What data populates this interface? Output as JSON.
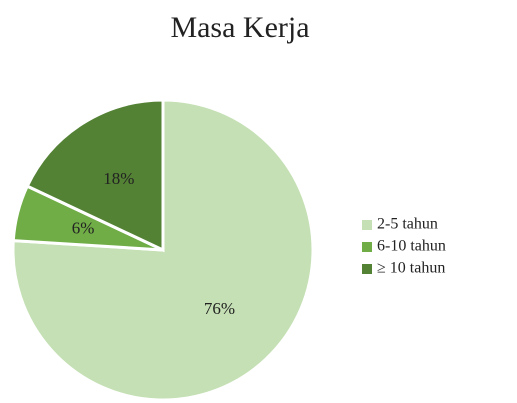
{
  "chart_data": {
    "type": "pie",
    "title": "Masa Kerja",
    "categories": [
      "2-5 tahun",
      "6-10 tahun",
      "≥ 10 tahun"
    ],
    "values": [
      76,
      6,
      18
    ],
    "value_labels": [
      "76%",
      "6%",
      "18%"
    ],
    "colors": [
      "#c5e0b4",
      "#70ad47",
      "#548235"
    ],
    "legend": "right"
  }
}
